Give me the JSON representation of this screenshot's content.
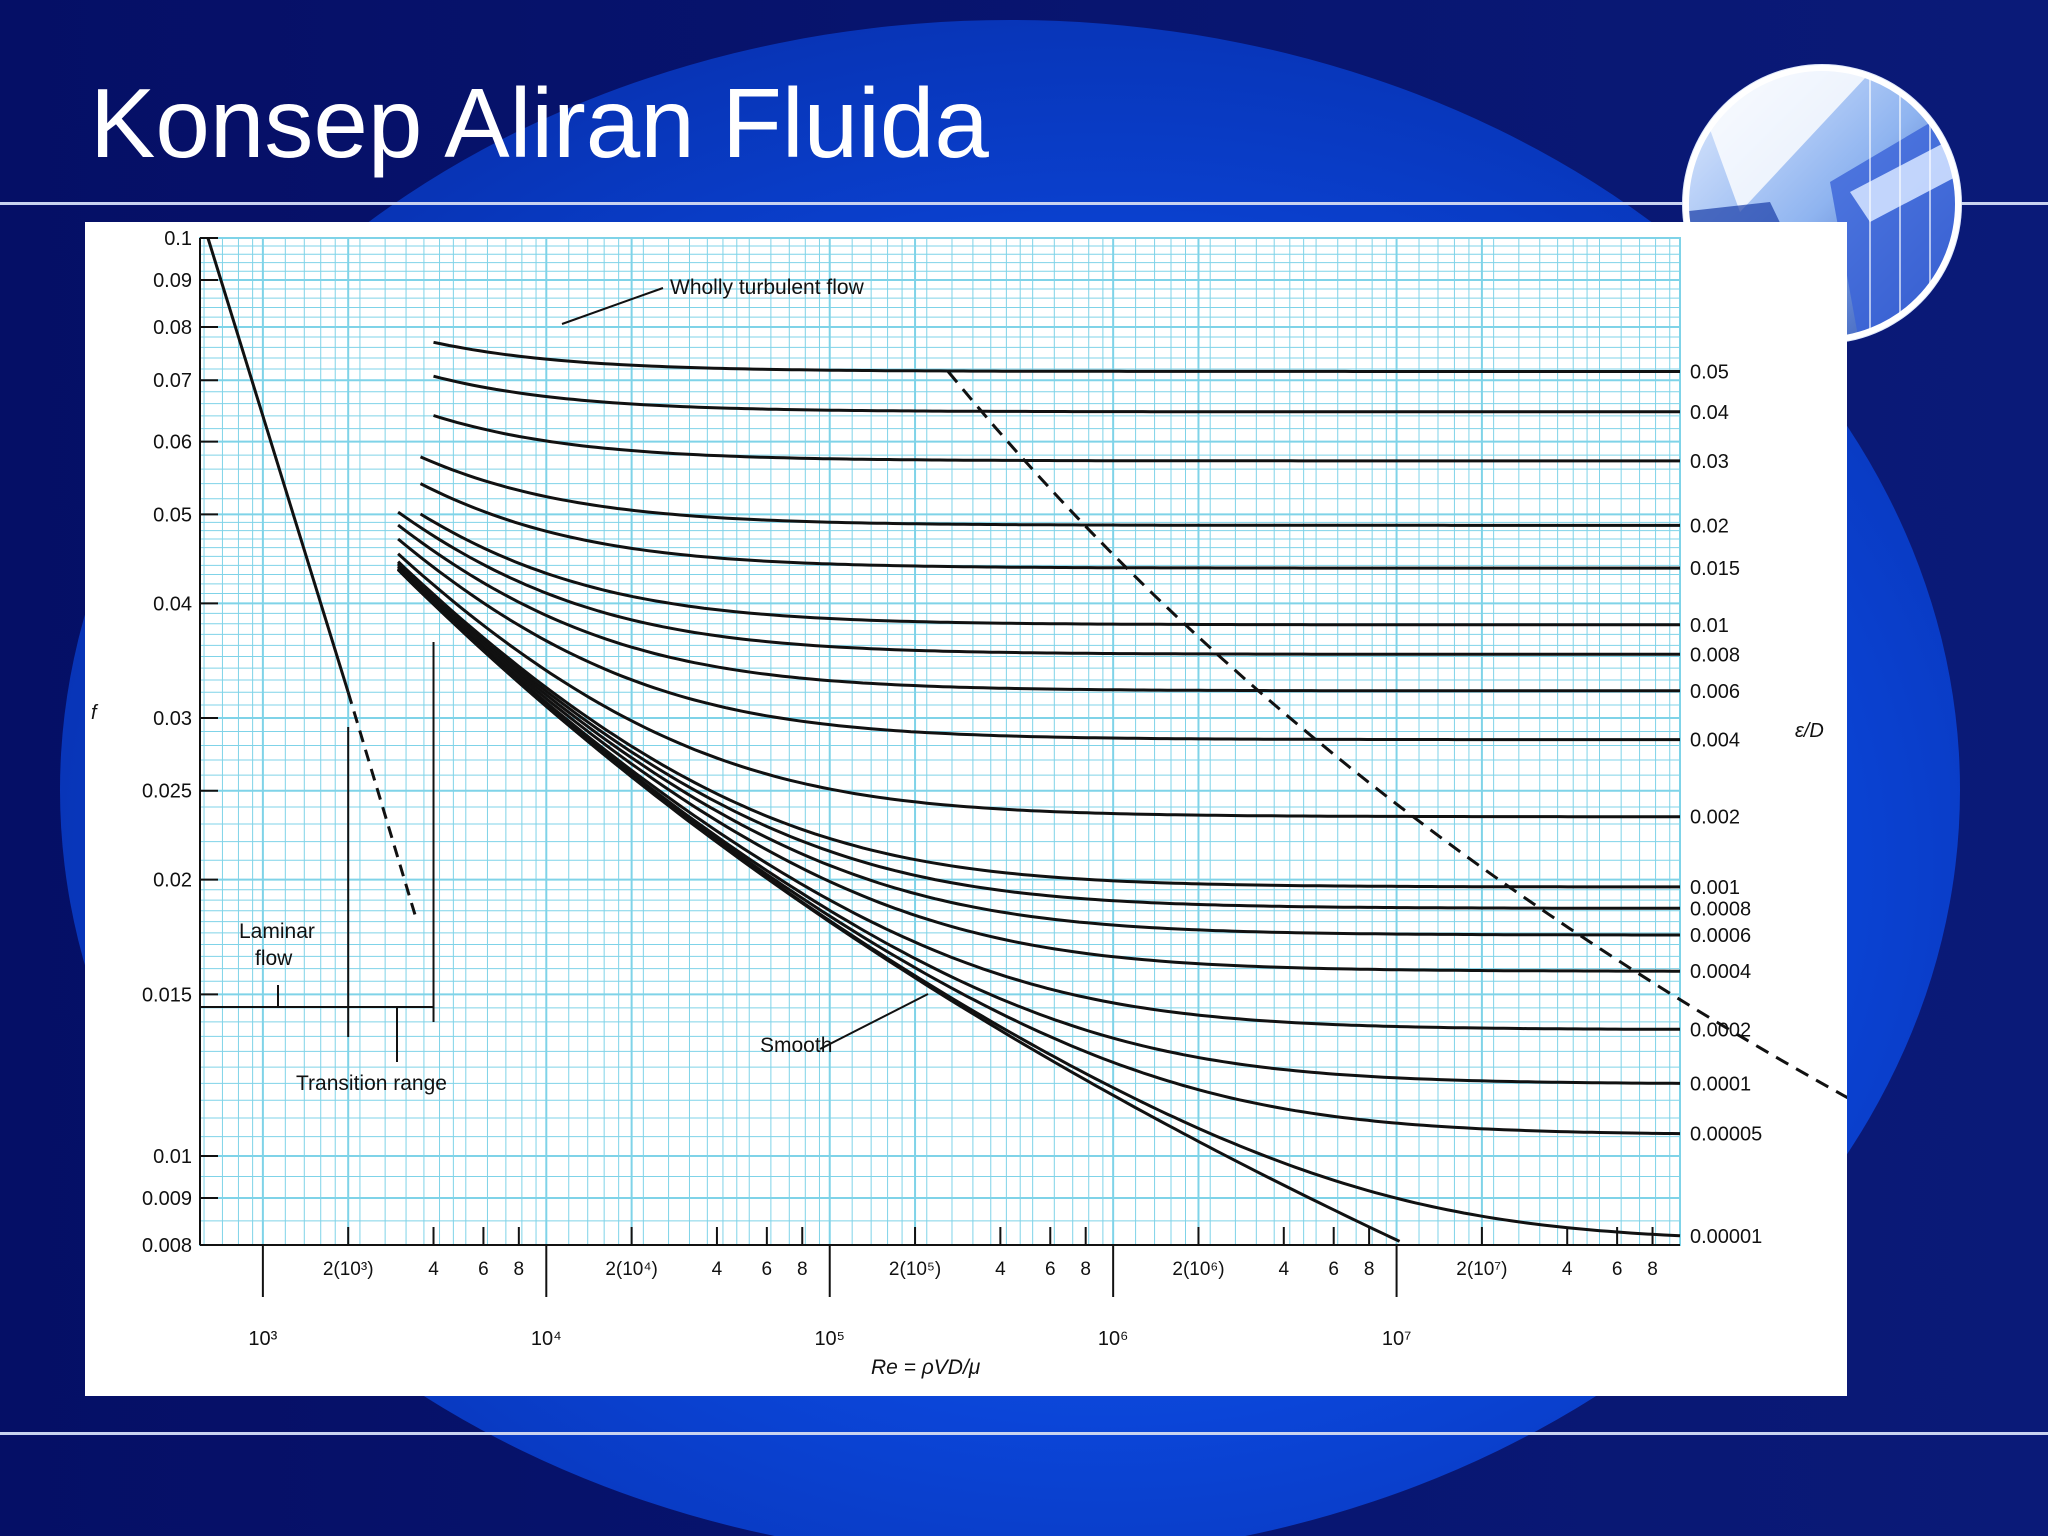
{
  "slide": {
    "title": "Konsep Aliran Fluida",
    "colors": {
      "background": "#06136e",
      "arc": "#0b3fd0",
      "rule": "#c9d3f0",
      "grid": "#7fd3e8"
    }
  },
  "logo": {
    "icon": "globe-logo"
  },
  "chart_data": {
    "type": "line",
    "title": "",
    "xlabel": "Re = ρVD/μ",
    "ylabel": "f",
    "right_axis_label": "ε/D",
    "xscale": "log",
    "yscale": "log",
    "xlim": [
      600,
      100000000
    ],
    "ylim": [
      0.008,
      0.1
    ],
    "grid": true,
    "x_decade_labels": [
      {
        "x": 1000,
        "text": "10³"
      },
      {
        "x": 10000,
        "text": "10⁴"
      },
      {
        "x": 100000,
        "text": "10⁵"
      },
      {
        "x": 1000000,
        "text": "10⁶"
      },
      {
        "x": 10000000,
        "text": "10⁷"
      }
    ],
    "x_minor_labels": [
      {
        "x": 2000,
        "text": "2(10³)"
      },
      {
        "x": 4000,
        "text": "4"
      },
      {
        "x": 6000,
        "text": "6"
      },
      {
        "x": 8000,
        "text": "8"
      },
      {
        "x": 20000,
        "text": "2(10⁴)"
      },
      {
        "x": 40000,
        "text": "4"
      },
      {
        "x": 60000,
        "text": "6"
      },
      {
        "x": 80000,
        "text": "8"
      },
      {
        "x": 200000,
        "text": "2(10⁵)"
      },
      {
        "x": 400000,
        "text": "4"
      },
      {
        "x": 600000,
        "text": "6"
      },
      {
        "x": 800000,
        "text": "8"
      },
      {
        "x": 2000000,
        "text": "2(10⁶)"
      },
      {
        "x": 4000000,
        "text": "4"
      },
      {
        "x": 6000000,
        "text": "6"
      },
      {
        "x": 8000000,
        "text": "8"
      },
      {
        "x": 20000000,
        "text": "2(10⁷)"
      },
      {
        "x": 40000000,
        "text": "4"
      },
      {
        "x": 60000000,
        "text": "6"
      },
      {
        "x": 80000000,
        "text": "8"
      }
    ],
    "y_tick_labels": [
      {
        "y": 0.1,
        "text": "0.1"
      },
      {
        "y": 0.09,
        "text": "0.09"
      },
      {
        "y": 0.08,
        "text": "0.08"
      },
      {
        "y": 0.07,
        "text": "0.07"
      },
      {
        "y": 0.06,
        "text": "0.06"
      },
      {
        "y": 0.05,
        "text": "0.05"
      },
      {
        "y": 0.04,
        "text": "0.04"
      },
      {
        "y": 0.03,
        "text": "0.03"
      },
      {
        "y": 0.025,
        "text": "0.025"
      },
      {
        "y": 0.02,
        "text": "0.02"
      },
      {
        "y": 0.015,
        "text": "0.015"
      },
      {
        "y": 0.01,
        "text": "0.01"
      },
      {
        "y": 0.009,
        "text": "0.009"
      },
      {
        "y": 0.008,
        "text": "0.008"
      }
    ],
    "laminar": {
      "x": [
        640,
        2000
      ],
      "y": [
        0.1,
        0.032
      ],
      "extension_x": [
        2000,
        3500
      ],
      "extension_y": [
        0.032,
        0.018
      ]
    },
    "roughness_curves": [
      {
        "label": "0.05",
        "rel": 0.05
      },
      {
        "label": "0.04",
        "rel": 0.04
      },
      {
        "label": "0.03",
        "rel": 0.03
      },
      {
        "label": "0.02",
        "rel": 0.02
      },
      {
        "label": "0.015",
        "rel": 0.015
      },
      {
        "label": "0.01",
        "rel": 0.01
      },
      {
        "label": "0.008",
        "rel": 0.008
      },
      {
        "label": "0.006",
        "rel": 0.006
      },
      {
        "label": "0.004",
        "rel": 0.004
      },
      {
        "label": "0.002",
        "rel": 0.002
      },
      {
        "label": "0.001",
        "rel": 0.001
      },
      {
        "label": "0.0008",
        "rel": 0.0008
      },
      {
        "label": "0.0006",
        "rel": 0.0006
      },
      {
        "label": "0.0004",
        "rel": 0.0004
      },
      {
        "label": "0.0002",
        "rel": 0.0002
      },
      {
        "label": "0.0001",
        "rel": 0.0001
      },
      {
        "label": "0.00005",
        "rel": 5e-05
      },
      {
        "label": "0.00001",
        "rel": 1e-05
      }
    ],
    "smooth_curve": {
      "rel": 0
    },
    "annotations": {
      "wholly_turbulent": "Wholly turbulent flow",
      "laminar_line1": "Laminar",
      "laminar_line2": "flow",
      "transition": "Transition range",
      "smooth": "Smooth"
    }
  }
}
